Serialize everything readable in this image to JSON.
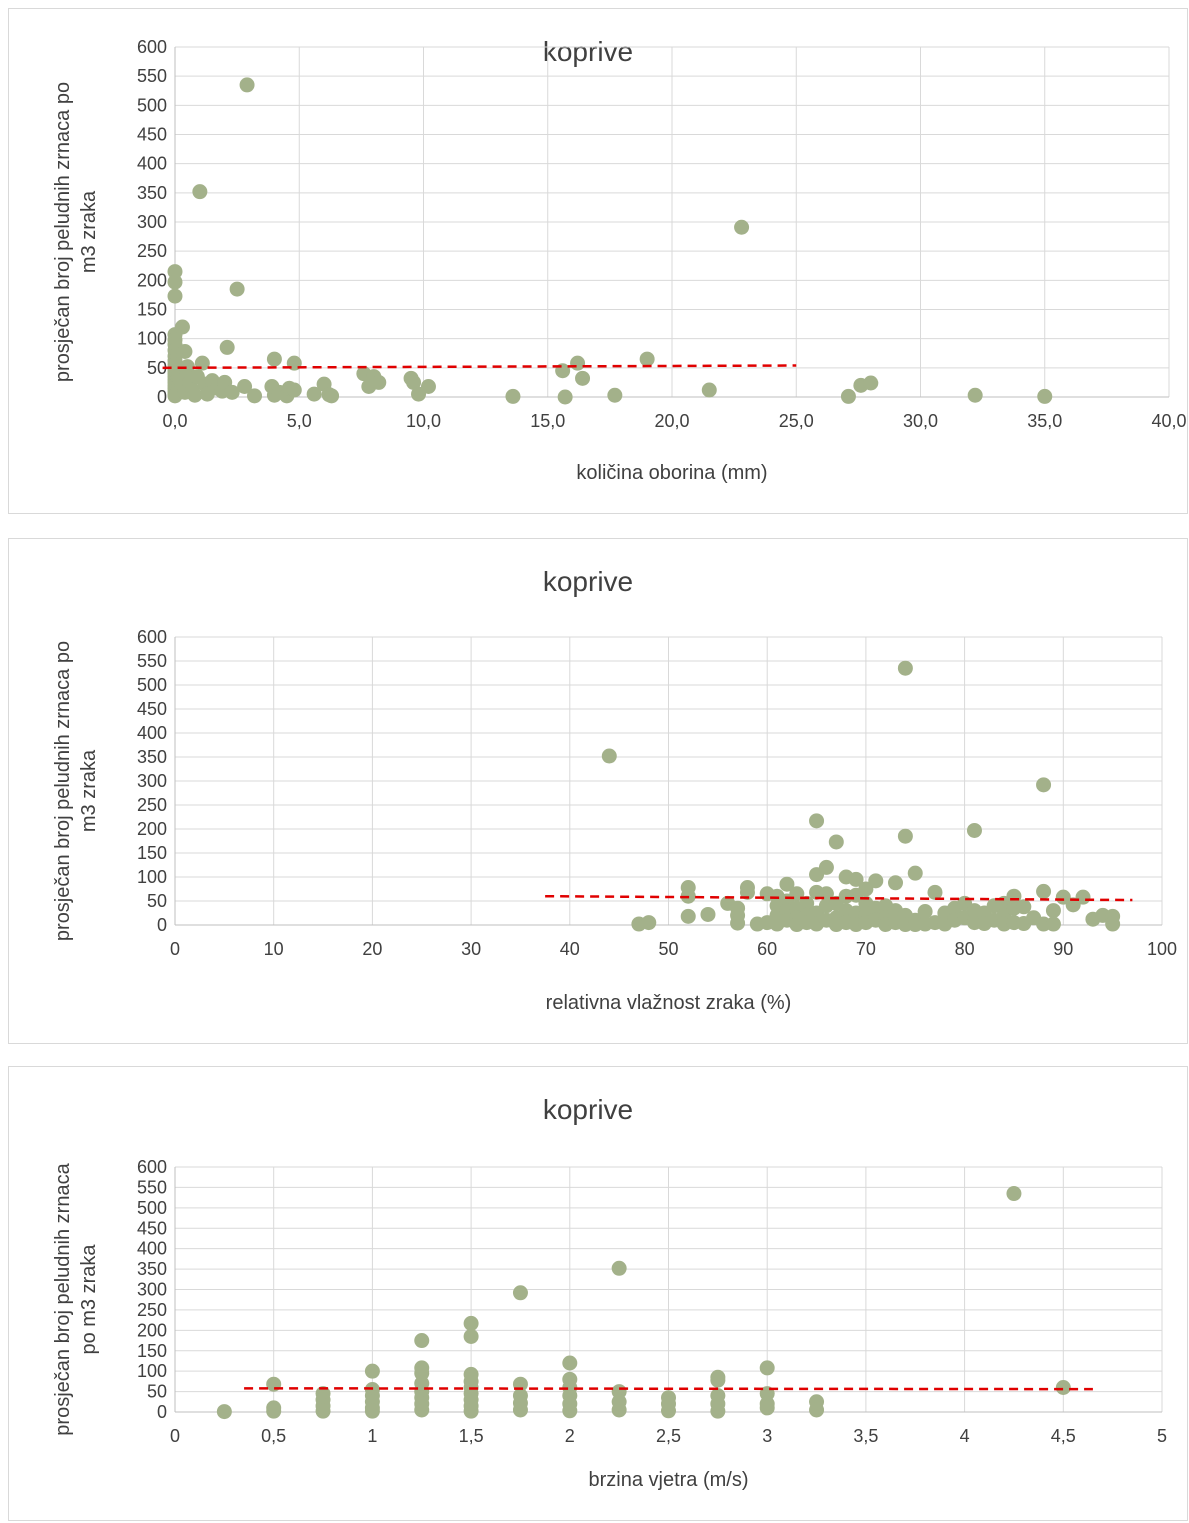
{
  "chart_data": [
    {
      "type": "scatter",
      "title": "koprive",
      "xlabel": "količina oborina (mm)",
      "ylabel": "prosječan broj peludnih zrnaca po m3 zraka",
      "ylabel_lines": [
        "prosječan broj peludnih zrnaca po",
        "m3 zraka"
      ],
      "xlim": [
        0,
        40
      ],
      "ylim": [
        0,
        600
      ],
      "x_ticks": [
        "0,0",
        "5,0",
        "10,0",
        "15,0",
        "20,0",
        "25,0",
        "30,0",
        "35,0",
        "40,0"
      ],
      "y_ticks": [
        "0",
        "50",
        "100",
        "150",
        "200",
        "250",
        "300",
        "350",
        "400",
        "450",
        "500",
        "550",
        "600"
      ],
      "grid": true,
      "legend": "none",
      "point_color": "#a3b18a",
      "trend_color": "#e00000",
      "trendline": {
        "x": [
          -0.5,
          25
        ],
        "y": [
          50,
          54
        ]
      },
      "points": [
        [
          0,
          215
        ],
        [
          0,
          197
        ],
        [
          0,
          173
        ],
        [
          0.3,
          120
        ],
        [
          0,
          107
        ],
        [
          0,
          98
        ],
        [
          0,
          90
        ],
        [
          0,
          80
        ],
        [
          0.4,
          78
        ],
        [
          0,
          70
        ],
        [
          0,
          62
        ],
        [
          0,
          55
        ],
        [
          0.5,
          52
        ],
        [
          0,
          48
        ],
        [
          0,
          44
        ],
        [
          0,
          40
        ],
        [
          0,
          35
        ],
        [
          0,
          30
        ],
        [
          0,
          25
        ],
        [
          0,
          20
        ],
        [
          0,
          15
        ],
        [
          0,
          10
        ],
        [
          0,
          5
        ],
        [
          0,
          2
        ],
        [
          0.2,
          30
        ],
        [
          0.3,
          18
        ],
        [
          0.4,
          8
        ],
        [
          0.5,
          40
        ],
        [
          0.6,
          25
        ],
        [
          0.7,
          12
        ],
        [
          0.8,
          3
        ],
        [
          0.9,
          35
        ],
        [
          1.0,
          352
        ],
        [
          1.1,
          58
        ],
        [
          1.2,
          22
        ],
        [
          1.3,
          5
        ],
        [
          1.5,
          28
        ],
        [
          1.7,
          15
        ],
        [
          1.9,
          10
        ],
        [
          2.0,
          25
        ],
        [
          2.1,
          85
        ],
        [
          2.3,
          8
        ],
        [
          2.5,
          185
        ],
        [
          2.8,
          18
        ],
        [
          2.9,
          535
        ],
        [
          3.2,
          2
        ],
        [
          3.9,
          18
        ],
        [
          4.0,
          65
        ],
        [
          4.0,
          3
        ],
        [
          4.2,
          8
        ],
        [
          4.5,
          2
        ],
        [
          4.6,
          15
        ],
        [
          4.8,
          12
        ],
        [
          4.8,
          58
        ],
        [
          5.6,
          5
        ],
        [
          6.0,
          22
        ],
        [
          6.2,
          4
        ],
        [
          6.3,
          2
        ],
        [
          7.6,
          40
        ],
        [
          7.8,
          18
        ],
        [
          8.0,
          35
        ],
        [
          8.2,
          25
        ],
        [
          9.5,
          32
        ],
        [
          9.6,
          25
        ],
        [
          9.8,
          5
        ],
        [
          10.2,
          18
        ],
        [
          13.6,
          1
        ],
        [
          15.6,
          45
        ],
        [
          15.7,
          0
        ],
        [
          16.2,
          58
        ],
        [
          16.4,
          32
        ],
        [
          17.7,
          3
        ],
        [
          19.0,
          65
        ],
        [
          21.5,
          12
        ],
        [
          22.8,
          291
        ],
        [
          27.1,
          1
        ],
        [
          27.6,
          20
        ],
        [
          28.0,
          24
        ],
        [
          32.2,
          3
        ],
        [
          35.0,
          1
        ]
      ]
    },
    {
      "type": "scatter",
      "title": "koprive",
      "xlabel": "relativna vlažnost zraka (%)",
      "ylabel": "prosječan broj peludnih zrnaca po m3 zraka",
      "ylabel_lines": [
        "prosječan broj peludnih zrnaca po",
        "m3 zraka"
      ],
      "xlim": [
        0,
        100
      ],
      "ylim": [
        0,
        600
      ],
      "x_ticks": [
        "0",
        "10",
        "20",
        "30",
        "40",
        "50",
        "60",
        "70",
        "80",
        "90",
        "100"
      ],
      "y_ticks": [
        "0",
        "50",
        "100",
        "150",
        "200",
        "250",
        "300",
        "350",
        "400",
        "450",
        "500",
        "550",
        "600"
      ],
      "grid": true,
      "legend": "none",
      "point_color": "#a3b18a",
      "trend_color": "#e00000",
      "trendline": {
        "x": [
          37.5,
          97
        ],
        "y": [
          60,
          52
        ]
      },
      "points": [
        [
          44,
          352
        ],
        [
          47,
          2
        ],
        [
          48,
          5
        ],
        [
          52,
          78
        ],
        [
          52,
          60
        ],
        [
          52,
          18
        ],
        [
          54,
          22
        ],
        [
          56,
          45
        ],
        [
          57,
          35
        ],
        [
          57,
          20
        ],
        [
          57,
          4
        ],
        [
          58,
          78
        ],
        [
          58,
          68
        ],
        [
          59,
          2
        ],
        [
          60,
          65
        ],
        [
          60,
          5
        ],
        [
          61,
          60
        ],
        [
          61,
          40
        ],
        [
          61,
          20
        ],
        [
          61,
          2
        ],
        [
          62,
          85
        ],
        [
          62,
          50
        ],
        [
          62,
          30
        ],
        [
          62,
          10
        ],
        [
          63,
          65
        ],
        [
          63,
          35
        ],
        [
          63,
          15
        ],
        [
          63,
          1
        ],
        [
          64,
          45
        ],
        [
          64,
          20
        ],
        [
          64,
          5
        ],
        [
          65,
          217
        ],
        [
          65,
          105
        ],
        [
          65,
          68
        ],
        [
          65,
          25
        ],
        [
          65,
          2
        ],
        [
          66,
          120
        ],
        [
          66,
          65
        ],
        [
          66,
          40
        ],
        [
          66,
          10
        ],
        [
          67,
          173
        ],
        [
          67,
          45
        ],
        [
          67,
          15
        ],
        [
          67,
          1
        ],
        [
          68,
          100
        ],
        [
          68,
          60
        ],
        [
          68,
          30
        ],
        [
          68,
          5
        ],
        [
          69,
          95
        ],
        [
          69,
          62
        ],
        [
          69,
          25
        ],
        [
          69,
          1
        ],
        [
          70,
          75
        ],
        [
          70,
          45
        ],
        [
          70,
          20
        ],
        [
          70,
          5
        ],
        [
          71,
          92
        ],
        [
          71,
          35
        ],
        [
          71,
          10
        ],
        [
          72,
          40
        ],
        [
          72,
          15
        ],
        [
          72,
          1
        ],
        [
          73,
          88
        ],
        [
          73,
          30
        ],
        [
          73,
          5
        ],
        [
          74,
          535
        ],
        [
          74,
          185
        ],
        [
          74,
          20
        ],
        [
          74,
          1
        ],
        [
          75,
          108
        ],
        [
          75,
          10
        ],
        [
          75,
          1
        ],
        [
          76,
          28
        ],
        [
          76,
          2
        ],
        [
          77,
          68
        ],
        [
          77,
          5
        ],
        [
          78,
          25
        ],
        [
          78,
          2
        ],
        [
          79,
          35
        ],
        [
          79,
          10
        ],
        [
          80,
          45
        ],
        [
          80,
          15
        ],
        [
          81,
          197
        ],
        [
          81,
          30
        ],
        [
          81,
          5
        ],
        [
          82,
          25
        ],
        [
          82,
          3
        ],
        [
          83,
          40
        ],
        [
          83,
          10
        ],
        [
          84,
          45
        ],
        [
          84,
          20
        ],
        [
          84,
          2
        ],
        [
          85,
          60
        ],
        [
          85,
          35
        ],
        [
          85,
          5
        ],
        [
          86,
          38
        ],
        [
          86,
          3
        ],
        [
          87,
          15
        ],
        [
          88,
          292
        ],
        [
          88,
          70
        ],
        [
          88,
          2
        ],
        [
          89,
          30
        ],
        [
          89,
          2
        ],
        [
          90,
          58
        ],
        [
          91,
          42
        ],
        [
          92,
          58
        ],
        [
          93,
          12
        ],
        [
          94,
          20
        ],
        [
          95,
          18
        ],
        [
          95,
          2
        ]
      ]
    },
    {
      "type": "scatter",
      "title": "koprive",
      "xlabel": "brzina vjetra (m/s)",
      "ylabel": "prosječan broj peludnih zrnaca po m3 zraka",
      "ylabel_lines": [
        "prosječan broj peludnih zrnaca",
        "po m3 zraka"
      ],
      "xlim": [
        0,
        5
      ],
      "ylim": [
        0,
        600
      ],
      "x_ticks": [
        "0",
        "0,5",
        "1",
        "1,5",
        "2",
        "2,5",
        "3",
        "3,5",
        "4",
        "4,5",
        "5"
      ],
      "y_ticks": [
        "0",
        "50",
        "100",
        "150",
        "200",
        "250",
        "300",
        "350",
        "400",
        "450",
        "500",
        "550",
        "600"
      ],
      "grid": true,
      "legend": "none",
      "point_color": "#a3b18a",
      "trend_color": "#e00000",
      "trendline": {
        "x": [
          0.35,
          4.65
        ],
        "y": [
          58,
          56
        ]
      },
      "points": [
        [
          0.25,
          1
        ],
        [
          0.5,
          68
        ],
        [
          0.5,
          10
        ],
        [
          0.5,
          2
        ],
        [
          0.75,
          45
        ],
        [
          0.75,
          30
        ],
        [
          0.75,
          15
        ],
        [
          0.75,
          2
        ],
        [
          1,
          100
        ],
        [
          1,
          55
        ],
        [
          1,
          40
        ],
        [
          1,
          25
        ],
        [
          1,
          10
        ],
        [
          1,
          2
        ],
        [
          1.25,
          175
        ],
        [
          1.25,
          108
        ],
        [
          1.25,
          95
        ],
        [
          1.25,
          70
        ],
        [
          1.25,
          50
        ],
        [
          1.25,
          35
        ],
        [
          1.25,
          20
        ],
        [
          1.25,
          5
        ],
        [
          1.5,
          217
        ],
        [
          1.5,
          185
        ],
        [
          1.5,
          92
        ],
        [
          1.5,
          75
        ],
        [
          1.5,
          60
        ],
        [
          1.5,
          45
        ],
        [
          1.5,
          30
        ],
        [
          1.5,
          15
        ],
        [
          1.5,
          2
        ],
        [
          1.75,
          292
        ],
        [
          1.75,
          68
        ],
        [
          1.75,
          40
        ],
        [
          1.75,
          22
        ],
        [
          1.75,
          5
        ],
        [
          2,
          120
        ],
        [
          2,
          80
        ],
        [
          2,
          60
        ],
        [
          2,
          40
        ],
        [
          2,
          20
        ],
        [
          2,
          3
        ],
        [
          2.25,
          352
        ],
        [
          2.25,
          50
        ],
        [
          2.25,
          25
        ],
        [
          2.25,
          5
        ],
        [
          2.5,
          35
        ],
        [
          2.5,
          20
        ],
        [
          2.5,
          3
        ],
        [
          2.75,
          85
        ],
        [
          2.75,
          78
        ],
        [
          2.75,
          40
        ],
        [
          2.75,
          20
        ],
        [
          2.75,
          2
        ],
        [
          3,
          108
        ],
        [
          3,
          45
        ],
        [
          3,
          20
        ],
        [
          3,
          10
        ],
        [
          3.25,
          25
        ],
        [
          3.25,
          5
        ],
        [
          4.25,
          535
        ],
        [
          4.5,
          60
        ]
      ]
    }
  ]
}
